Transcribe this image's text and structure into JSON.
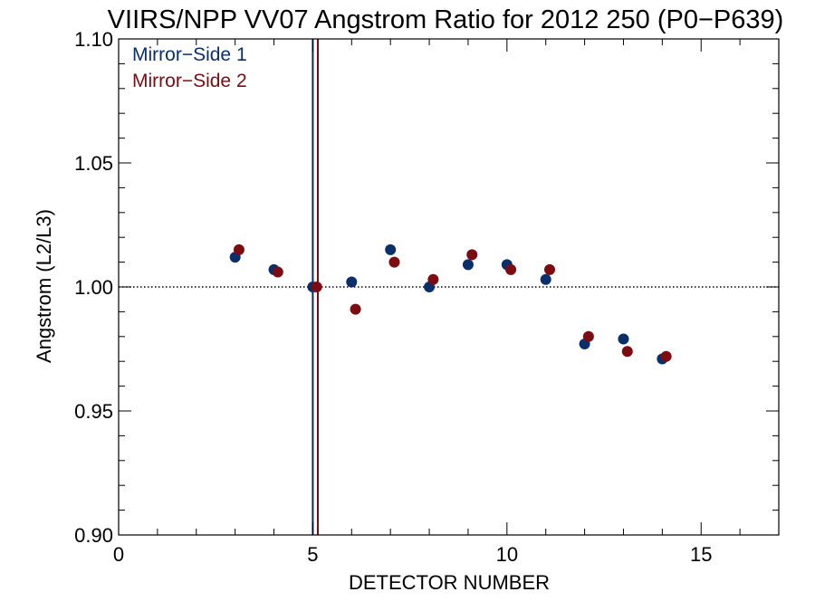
{
  "chart_data": {
    "type": "scatter",
    "title": "VIIRS/NPP VV07 Angstrom Ratio for 2012 250 (P0−P639)",
    "xlabel": "DETECTOR NUMBER",
    "ylabel": "Angstrom (L2/L3)",
    "xlim": [
      0,
      17
    ],
    "ylim": [
      0.9,
      1.1
    ],
    "x_ticks": [
      0,
      5,
      10,
      15
    ],
    "x_tick_labels": [
      "0",
      "5",
      "10",
      "15"
    ],
    "x_minor_step": 1,
    "y_ticks": [
      0.9,
      0.95,
      1.0,
      1.05,
      1.1
    ],
    "y_tick_labels": [
      "0.90",
      "0.95",
      "1.00",
      "1.05",
      "1.10"
    ],
    "y_minor_step": 0.01,
    "reference_line_y": 1.0,
    "vertical_lines": [
      {
        "x": 5.0,
        "color": "#0a2a66"
      },
      {
        "x": 5.13,
        "color": "#7a0a10"
      }
    ],
    "legend_position": "top-left",
    "series": [
      {
        "name": "Mirror−Side 1",
        "color": "#0a2f6b",
        "x": [
          3,
          4,
          5,
          6,
          7,
          8,
          9,
          10,
          11,
          12,
          13,
          14
        ],
        "y": [
          1.012,
          1.007,
          1.0,
          1.002,
          1.015,
          1.0,
          1.009,
          1.009,
          1.003,
          0.977,
          0.979,
          0.971
        ]
      },
      {
        "name": "Mirror−Side 2",
        "color": "#7a0c12",
        "x": [
          3.1,
          4.1,
          5.1,
          6.1,
          7.1,
          8.1,
          9.1,
          10.1,
          11.1,
          12.1,
          13.1,
          14.1
        ],
        "y": [
          1.015,
          1.006,
          1.0,
          0.991,
          1.01,
          1.003,
          1.013,
          1.007,
          1.007,
          0.98,
          0.974,
          0.972
        ]
      }
    ]
  }
}
